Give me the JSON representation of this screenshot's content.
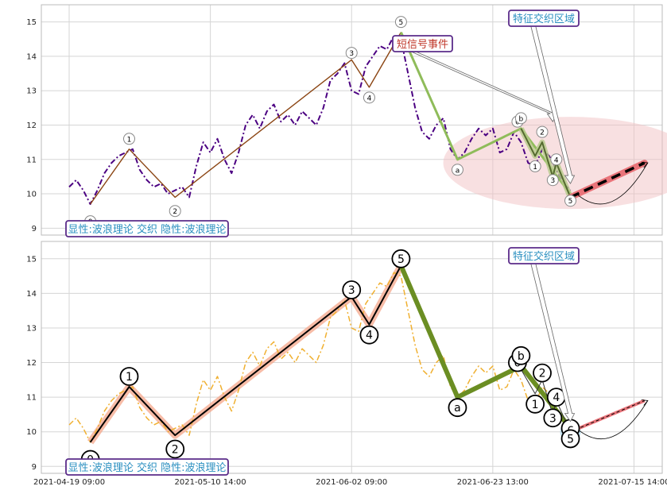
{
  "chart_data": [
    {
      "type": "line",
      "panel": "top",
      "title": "",
      "ylim": [
        8.8,
        15.5
      ],
      "yticks": [
        9,
        10,
        11,
        12,
        13,
        14,
        15
      ],
      "grid": true,
      "price_series_color": "#4b0082",
      "price_series": [
        [
          0,
          10.2
        ],
        [
          2,
          10.4
        ],
        [
          4,
          10.1
        ],
        [
          6,
          9.7
        ],
        [
          8,
          10.1
        ],
        [
          10,
          10.6
        ],
        [
          12,
          10.9
        ],
        [
          14,
          11.1
        ],
        [
          16,
          11.2
        ],
        [
          18,
          11.3
        ],
        [
          20,
          10.7
        ],
        [
          22,
          10.4
        ],
        [
          24,
          10.2
        ],
        [
          26,
          10.3
        ],
        [
          28,
          10.0
        ],
        [
          30,
          10.1
        ],
        [
          32,
          10.2
        ],
        [
          34,
          9.9
        ],
        [
          36,
          10.8
        ],
        [
          38,
          11.5
        ],
        [
          40,
          11.2
        ],
        [
          42,
          11.6
        ],
        [
          44,
          11.0
        ],
        [
          46,
          10.6
        ],
        [
          48,
          11.2
        ],
        [
          50,
          12.0
        ],
        [
          52,
          12.3
        ],
        [
          54,
          11.9
        ],
        [
          56,
          12.4
        ],
        [
          58,
          12.6
        ],
        [
          60,
          12.1
        ],
        [
          62,
          12.3
        ],
        [
          64,
          12.0
        ],
        [
          66,
          12.4
        ],
        [
          68,
          12.2
        ],
        [
          70,
          12.0
        ],
        [
          72,
          12.5
        ],
        [
          74,
          13.3
        ],
        [
          76,
          13.5
        ],
        [
          78,
          13.8
        ],
        [
          80,
          13.0
        ],
        [
          82,
          12.9
        ],
        [
          84,
          13.7
        ],
        [
          86,
          14.0
        ],
        [
          88,
          14.3
        ],
        [
          90,
          14.2
        ],
        [
          92,
          14.6
        ],
        [
          94,
          14.5
        ],
        [
          96,
          13.5
        ],
        [
          98,
          12.5
        ],
        [
          100,
          11.8
        ],
        [
          102,
          11.6
        ],
        [
          104,
          12.0
        ],
        [
          106,
          12.2
        ],
        [
          108,
          11.3
        ],
        [
          110,
          11.0
        ],
        [
          112,
          11.2
        ],
        [
          114,
          11.6
        ],
        [
          116,
          11.9
        ],
        [
          118,
          11.7
        ],
        [
          120,
          11.9
        ],
        [
          122,
          11.2
        ],
        [
          124,
          11.3
        ],
        [
          126,
          11.8
        ],
        [
          128,
          11.5
        ],
        [
          130,
          10.9
        ],
        [
          132,
          10.8
        ],
        [
          134,
          11.3
        ],
        [
          136,
          11.1
        ],
        [
          138,
          10.7
        ],
        [
          140,
          10.3
        ],
        [
          142,
          10.1
        ]
      ],
      "wave_line": {
        "color": "#8b4513",
        "points": [
          [
            6,
            9.7
          ],
          [
            17,
            11.3
          ],
          [
            30,
            9.9
          ],
          [
            80,
            13.9
          ],
          [
            85,
            13.1
          ],
          [
            94,
            14.7
          ]
        ]
      },
      "abc_line": {
        "color": "#8fbc5a",
        "points": [
          [
            94,
            14.7
          ],
          [
            110,
            11.0
          ],
          [
            128,
            11.9
          ],
          [
            142,
            10.0
          ]
        ]
      },
      "sub_wave_line": {
        "color": "#556b2f",
        "points": [
          [
            128,
            11.9
          ],
          [
            132,
            11.1
          ],
          [
            134,
            11.5
          ],
          [
            137,
            10.5
          ],
          [
            138,
            10.9
          ],
          [
            142,
            9.9
          ]
        ]
      },
      "forecast_line": {
        "color": "#e9747a",
        "points": [
          [
            142,
            9.9
          ],
          [
            163,
            10.9
          ]
        ]
      },
      "wave_labels": [
        {
          "text": "0",
          "x": 6,
          "y": 9.2
        },
        {
          "text": "1",
          "x": 17,
          "y": 11.6
        },
        {
          "text": "2",
          "x": 30,
          "y": 9.5
        },
        {
          "text": "3",
          "x": 80,
          "y": 14.1
        },
        {
          "text": "4",
          "x": 85,
          "y": 12.8
        },
        {
          "text": "5",
          "x": 94,
          "y": 15.0
        },
        {
          "text": "a",
          "x": 110,
          "y": 10.7
        },
        {
          "text": "0",
          "x": 127,
          "y": 12.1
        },
        {
          "text": "b",
          "x": 128,
          "y": 12.2
        },
        {
          "text": "1",
          "x": 132,
          "y": 10.8
        },
        {
          "text": "2",
          "x": 134,
          "y": 11.8
        },
        {
          "text": "3",
          "x": 137,
          "y": 10.4
        },
        {
          "text": "4",
          "x": 138,
          "y": 11.0
        },
        {
          "text": "5",
          "x": 142,
          "y": 9.8
        }
      ],
      "annotations": [
        {
          "text": "短信号事件",
          "color": "#c0392b"
        },
        {
          "text": "特征交织区域",
          "color": "#2a8fc0"
        }
      ],
      "footer_label": "显性:波浪理论 交织 隐性:波浪理论"
    },
    {
      "type": "line",
      "panel": "bottom",
      "title": "",
      "ylim": [
        8.8,
        15.5
      ],
      "yticks": [
        9,
        10,
        11,
        12,
        13,
        14,
        15
      ],
      "xtick_labels": [
        "2021-04-19 09:00",
        "2021-05-10 14:00",
        "2021-06-02 09:00",
        "2021-06-23 13:00",
        "2021-07-15 14:00"
      ],
      "grid": true,
      "price_series_color": "#f0b030",
      "price_series": [
        [
          0,
          10.2
        ],
        [
          2,
          10.4
        ],
        [
          4,
          10.1
        ],
        [
          6,
          9.7
        ],
        [
          8,
          10.1
        ],
        [
          10,
          10.6
        ],
        [
          12,
          10.9
        ],
        [
          14,
          11.1
        ],
        [
          16,
          11.2
        ],
        [
          18,
          11.3
        ],
        [
          20,
          10.7
        ],
        [
          22,
          10.4
        ],
        [
          24,
          10.2
        ],
        [
          26,
          10.3
        ],
        [
          28,
          10.0
        ],
        [
          30,
          10.1
        ],
        [
          32,
          10.2
        ],
        [
          34,
          9.9
        ],
        [
          36,
          10.8
        ],
        [
          38,
          11.5
        ],
        [
          40,
          11.2
        ],
        [
          42,
          11.6
        ],
        [
          44,
          11.0
        ],
        [
          46,
          10.6
        ],
        [
          48,
          11.2
        ],
        [
          50,
          12.0
        ],
        [
          52,
          12.3
        ],
        [
          54,
          11.9
        ],
        [
          56,
          12.4
        ],
        [
          58,
          12.6
        ],
        [
          60,
          12.1
        ],
        [
          62,
          12.3
        ],
        [
          64,
          12.0
        ],
        [
          66,
          12.4
        ],
        [
          68,
          12.2
        ],
        [
          70,
          12.0
        ],
        [
          72,
          12.5
        ],
        [
          74,
          13.3
        ],
        [
          76,
          13.5
        ],
        [
          78,
          13.8
        ],
        [
          80,
          13.0
        ],
        [
          82,
          12.9
        ],
        [
          84,
          13.7
        ],
        [
          86,
          14.0
        ],
        [
          88,
          14.3
        ],
        [
          90,
          14.2
        ],
        [
          92,
          14.6
        ],
        [
          94,
          14.5
        ],
        [
          96,
          13.5
        ],
        [
          98,
          12.5
        ],
        [
          100,
          11.8
        ],
        [
          102,
          11.6
        ],
        [
          104,
          12.0
        ],
        [
          106,
          12.2
        ],
        [
          108,
          11.3
        ],
        [
          110,
          11.0
        ],
        [
          112,
          11.2
        ],
        [
          114,
          11.6
        ],
        [
          116,
          11.9
        ],
        [
          118,
          11.7
        ],
        [
          120,
          11.9
        ],
        [
          122,
          11.2
        ],
        [
          124,
          11.3
        ],
        [
          126,
          11.8
        ],
        [
          128,
          11.5
        ],
        [
          130,
          10.9
        ],
        [
          132,
          10.8
        ],
        [
          134,
          11.3
        ],
        [
          136,
          11.1
        ],
        [
          138,
          10.7
        ],
        [
          140,
          10.3
        ],
        [
          142,
          10.1
        ]
      ],
      "wave_line": {
        "color": "#000000",
        "points": [
          [
            6,
            9.7
          ],
          [
            17,
            11.3
          ],
          [
            30,
            9.9
          ],
          [
            80,
            13.9
          ],
          [
            85,
            13.1
          ],
          [
            94,
            14.8
          ]
        ]
      },
      "abc_line": {
        "color": "#6b8e23",
        "points": [
          [
            94,
            14.8
          ],
          [
            110,
            11.0
          ],
          [
            128,
            11.9
          ],
          [
            142,
            10.1
          ]
        ]
      },
      "sub_wave_line": {
        "color": "#333333",
        "points": [
          [
            128,
            11.8
          ],
          [
            132,
            11.1
          ],
          [
            134,
            11.5
          ],
          [
            137,
            10.5
          ],
          [
            138,
            10.9
          ],
          [
            142,
            10.0
          ]
        ]
      },
      "forecast_line": {
        "color": "#e9747a",
        "points": [
          [
            142,
            10.0
          ],
          [
            163,
            10.9
          ]
        ]
      },
      "wave_labels": [
        {
          "text": "0",
          "x": 6,
          "y": 9.2
        },
        {
          "text": "1",
          "x": 17,
          "y": 11.6
        },
        {
          "text": "2",
          "x": 30,
          "y": 9.5
        },
        {
          "text": "3",
          "x": 80,
          "y": 14.1
        },
        {
          "text": "4",
          "x": 85,
          "y": 12.8
        },
        {
          "text": "5",
          "x": 94,
          "y": 15.0
        },
        {
          "text": "a",
          "x": 110,
          "y": 10.7
        },
        {
          "text": "0",
          "x": 127,
          "y": 12.0
        },
        {
          "text": "b",
          "x": 128,
          "y": 12.2
        },
        {
          "text": "1",
          "x": 132,
          "y": 10.8
        },
        {
          "text": "2",
          "x": 134,
          "y": 11.7
        },
        {
          "text": "3",
          "x": 137,
          "y": 10.4
        },
        {
          "text": "4",
          "x": 138,
          "y": 11.0
        },
        {
          "text": "c",
          "x": 142,
          "y": 10.1
        },
        {
          "text": "5",
          "x": 142,
          "y": 9.8
        }
      ],
      "annotations": [
        {
          "text": "特征交织区域",
          "color": "#2a8fc0"
        }
      ],
      "footer_label": "显性:波浪理论 交织 隐性:波浪理论"
    }
  ]
}
